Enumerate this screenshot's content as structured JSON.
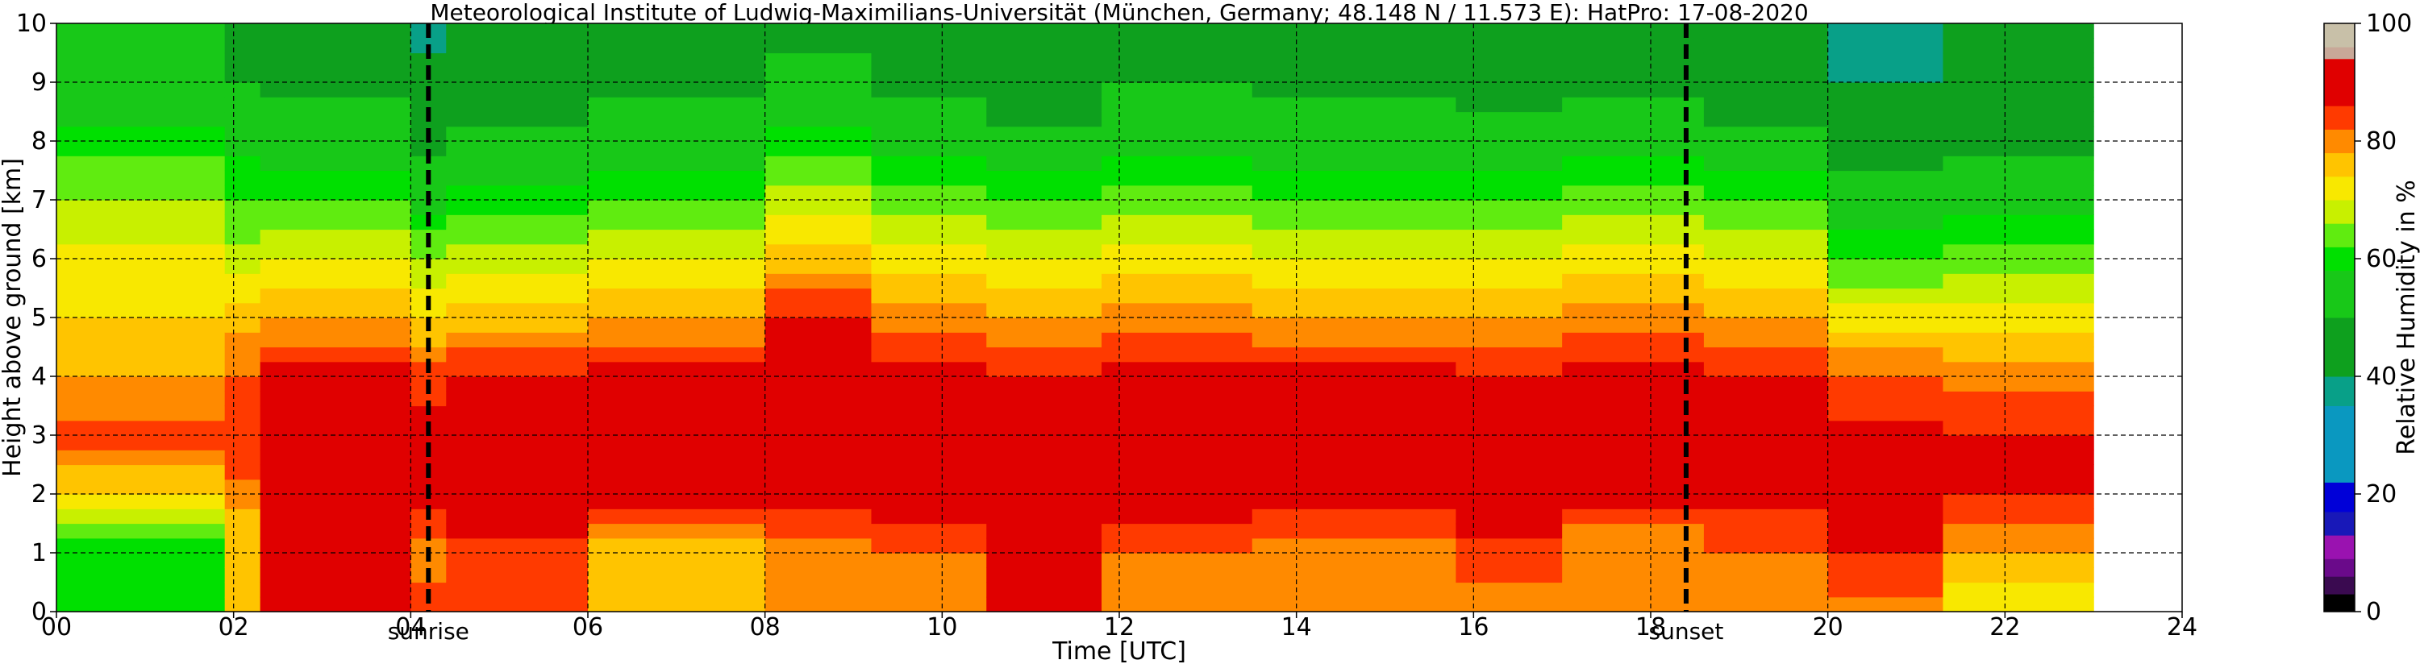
{
  "chart_data": {
    "type": "heatmap",
    "title": "Meteorological Institute of Ludwig-Maximilians-Universität (München, Germany; 48.148 N / 11.573 E):    HatPro: 17-08-2020",
    "xlabel": "Time [UTC]",
    "ylabel": "Height above ground [km]",
    "xlim": [
      0,
      24
    ],
    "ylim": [
      0,
      10
    ],
    "x_ticks": [
      "00",
      "02",
      "04",
      "06",
      "08",
      "10",
      "12",
      "14",
      "16",
      "18",
      "20",
      "22",
      "24"
    ],
    "y_ticks": [
      "0",
      "1",
      "2",
      "3",
      "4",
      "5",
      "6",
      "7",
      "8",
      "9",
      "10"
    ],
    "grid": true,
    "data_end_hour": 23.0,
    "annotations": [
      {
        "label": "sunrise",
        "x": 4.2
      },
      {
        "label": "sunset",
        "x": 18.4
      }
    ],
    "colorbar": {
      "label": "Relative Humidity in %",
      "range": [
        0,
        100
      ],
      "ticks": [
        "0",
        "20",
        "40",
        "60",
        "80",
        "100"
      ],
      "colors": [
        {
          "from": 0,
          "to": 3,
          "color": "#000000"
        },
        {
          "from": 3,
          "to": 6,
          "color": "#3a0a50"
        },
        {
          "from": 6,
          "to": 9,
          "color": "#6a0a8a"
        },
        {
          "from": 9,
          "to": 13,
          "color": "#9a12b0"
        },
        {
          "from": 13,
          "to": 17,
          "color": "#1818b8"
        },
        {
          "from": 17,
          "to": 22,
          "color": "#0000d8"
        },
        {
          "from": 22,
          "to": 35,
          "color": "#0a98c0"
        },
        {
          "from": 35,
          "to": 40,
          "color": "#08a088"
        },
        {
          "from": 40,
          "to": 50,
          "color": "#0ea01e"
        },
        {
          "from": 50,
          "to": 58,
          "color": "#18c818"
        },
        {
          "from": 58,
          "to": 62,
          "color": "#00e000"
        },
        {
          "from": 62,
          "to": 66,
          "color": "#60ec10"
        },
        {
          "from": 66,
          "to": 70,
          "color": "#c8f000"
        },
        {
          "from": 70,
          "to": 74,
          "color": "#f8e800"
        },
        {
          "from": 74,
          "to": 78,
          "color": "#ffc400"
        },
        {
          "from": 78,
          "to": 82,
          "color": "#ff8a00"
        },
        {
          "from": 82,
          "to": 86,
          "color": "#ff3a00"
        },
        {
          "from": 86,
          "to": 94,
          "color": "#e00000"
        },
        {
          "from": 94,
          "to": 96,
          "color": "#c8a898"
        },
        {
          "from": 96,
          "to": 100,
          "color": "#c8c0a8"
        }
      ]
    },
    "rh_profiles": [
      {
        "x_start": 0.0,
        "x_end": 1.9,
        "rh": [
          60,
          58,
          74,
          84,
          78,
          74,
          72,
          66,
          60,
          54,
          52
        ]
      },
      {
        "x_start": 1.9,
        "x_end": 2.3,
        "rh": [
          78,
          74,
          80,
          86,
          82,
          76,
          68,
          62,
          56,
          50,
          46
        ]
      },
      {
        "x_start": 2.3,
        "x_end": 4.0,
        "rh": [
          88,
          88,
          90,
          90,
          88,
          78,
          70,
          62,
          54,
          48,
          44
        ]
      },
      {
        "x_start": 4.0,
        "x_end": 4.4,
        "rh": [
          84,
          80,
          88,
          88,
          84,
          74,
          66,
          56,
          48,
          42,
          38
        ]
      },
      {
        "x_start": 4.4,
        "x_end": 6.0,
        "rh": [
          86,
          84,
          90,
          90,
          86,
          76,
          68,
          60,
          52,
          46,
          42
        ]
      },
      {
        "x_start": 6.0,
        "x_end": 8.0,
        "rh": [
          78,
          76,
          88,
          90,
          88,
          78,
          70,
          62,
          54,
          48,
          44
        ]
      },
      {
        "x_start": 8.0,
        "x_end": 9.2,
        "rh": [
          80,
          78,
          90,
          92,
          90,
          86,
          76,
          68,
          60,
          52,
          48
        ]
      },
      {
        "x_start": 9.2,
        "x_end": 10.5,
        "rh": [
          80,
          82,
          90,
          90,
          88,
          80,
          72,
          64,
          56,
          48,
          44
        ]
      },
      {
        "x_start": 10.5,
        "x_end": 11.8,
        "rh": [
          86,
          88,
          92,
          90,
          86,
          78,
          70,
          62,
          54,
          42,
          40
        ]
      },
      {
        "x_start": 11.8,
        "x_end": 13.5,
        "rh": [
          80,
          82,
          90,
          90,
          88,
          80,
          72,
          64,
          56,
          50,
          46
        ]
      },
      {
        "x_start": 13.5,
        "x_end": 15.8,
        "rh": [
          78,
          80,
          88,
          90,
          88,
          78,
          70,
          62,
          54,
          48,
          44
        ]
      },
      {
        "x_start": 15.8,
        "x_end": 17.0,
        "rh": [
          80,
          84,
          90,
          90,
          86,
          78,
          70,
          62,
          54,
          46,
          42
        ]
      },
      {
        "x_start": 17.0,
        "x_end": 18.6,
        "rh": [
          80,
          78,
          88,
          90,
          88,
          80,
          72,
          64,
          56,
          48,
          44
        ]
      },
      {
        "x_start": 18.6,
        "x_end": 20.0,
        "rh": [
          78,
          82,
          88,
          90,
          86,
          78,
          70,
          62,
          52,
          44,
          40
        ]
      },
      {
        "x_start": 20.0,
        "x_end": 21.3,
        "rh": [
          80,
          86,
          90,
          88,
          82,
          72,
          62,
          54,
          46,
          40,
          38
        ]
      },
      {
        "x_start": 21.3,
        "x_end": 23.0,
        "rh": [
          70,
          78,
          86,
          86,
          80,
          72,
          64,
          56,
          48,
          42,
          40
        ]
      }
    ]
  }
}
